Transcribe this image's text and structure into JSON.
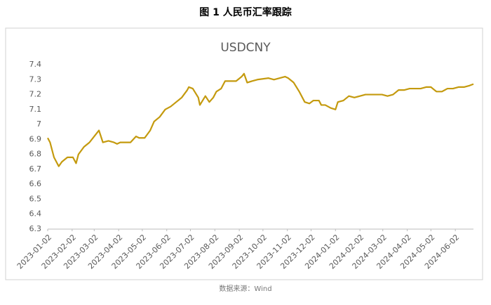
{
  "figure_title": "图 1  人民币汇率跟踪",
  "source": "数据来源：Wind",
  "chart_data": {
    "type": "line",
    "title": "USDCNY",
    "x": [
      "2023-01-02",
      "2023-01-05",
      "2023-01-10",
      "2023-01-16",
      "2023-01-20",
      "2023-01-27",
      "2023-02-03",
      "2023-02-07",
      "2023-02-10",
      "2023-02-17",
      "2023-02-24",
      "2023-03-02",
      "2023-03-08",
      "2023-03-13",
      "2023-03-20",
      "2023-03-27",
      "2023-03-31",
      "2023-04-04",
      "2023-04-10",
      "2023-04-17",
      "2023-04-24",
      "2023-04-28",
      "2023-05-05",
      "2023-05-12",
      "2023-05-17",
      "2023-05-24",
      "2023-05-31",
      "2023-06-07",
      "2023-06-14",
      "2023-06-21",
      "2023-06-28",
      "2023-06-30",
      "2023-07-05",
      "2023-07-12",
      "2023-07-14",
      "2023-07-21",
      "2023-07-26",
      "2023-07-31",
      "2023-08-04",
      "2023-08-10",
      "2023-08-15",
      "2023-08-22",
      "2023-08-29",
      "2023-09-05",
      "2023-09-08",
      "2023-09-12",
      "2023-09-18",
      "2023-09-25",
      "2023-10-09",
      "2023-10-16",
      "2023-10-23",
      "2023-10-30",
      "2023-11-03",
      "2023-11-10",
      "2023-11-17",
      "2023-11-24",
      "2023-11-30",
      "2023-12-05",
      "2023-12-12",
      "2023-12-15",
      "2023-12-20",
      "2023-12-27",
      "2024-01-02",
      "2024-01-05",
      "2024-01-12",
      "2024-01-19",
      "2024-01-26",
      "2024-02-02",
      "2024-02-09",
      "2024-02-19",
      "2024-02-26",
      "2024-03-01",
      "2024-03-08",
      "2024-03-15",
      "2024-03-22",
      "2024-03-29",
      "2024-04-05",
      "2024-04-12",
      "2024-04-19",
      "2024-04-26",
      "2024-05-02",
      "2024-05-09",
      "2024-05-16",
      "2024-05-23",
      "2024-05-30",
      "2024-06-06",
      "2024-06-13",
      "2024-06-20",
      "2024-06-25"
    ],
    "series": [
      {
        "name": "USDCNY",
        "color": "#c49a0e",
        "values": [
          6.91,
          6.88,
          6.78,
          6.72,
          6.75,
          6.78,
          6.78,
          6.74,
          6.8,
          6.85,
          6.88,
          6.92,
          6.96,
          6.88,
          6.89,
          6.88,
          6.87,
          6.88,
          6.88,
          6.88,
          6.92,
          6.91,
          6.91,
          6.96,
          7.02,
          7.05,
          7.1,
          7.12,
          7.15,
          7.18,
          7.23,
          7.25,
          7.24,
          7.18,
          7.13,
          7.19,
          7.15,
          7.18,
          7.22,
          7.24,
          7.29,
          7.29,
          7.29,
          7.32,
          7.34,
          7.28,
          7.29,
          7.3,
          7.31,
          7.3,
          7.31,
          7.32,
          7.31,
          7.28,
          7.22,
          7.15,
          7.14,
          7.16,
          7.16,
          7.13,
          7.13,
          7.11,
          7.1,
          7.15,
          7.16,
          7.19,
          7.18,
          7.19,
          7.2,
          7.2,
          7.2,
          7.2,
          7.19,
          7.2,
          7.23,
          7.23,
          7.24,
          7.24,
          7.24,
          7.25,
          7.25,
          7.22,
          7.22,
          7.24,
          7.24,
          7.25,
          7.25,
          7.26,
          7.27
        ]
      }
    ],
    "xlim": [
      "2023-01-02",
      "2024-06-25"
    ],
    "xticks": [
      "2023-01-02",
      "2023-02-02",
      "2023-03-02",
      "2023-04-02",
      "2023-05-02",
      "2023-06-02",
      "2023-07-02",
      "2023-08-02",
      "2023-09-02",
      "2023-10-02",
      "2023-11-02",
      "2023-12-02",
      "2024-01-02",
      "2024-02-02",
      "2024-03-02",
      "2024-04-02",
      "2024-05-02",
      "2024-06-02"
    ],
    "ylim": [
      6.3,
      7.4
    ],
    "yticks": [
      6.3,
      6.4,
      6.5,
      6.6,
      6.7,
      6.8,
      6.9,
      7,
      7.1,
      7.2,
      7.3,
      7.4
    ],
    "grid": false
  }
}
